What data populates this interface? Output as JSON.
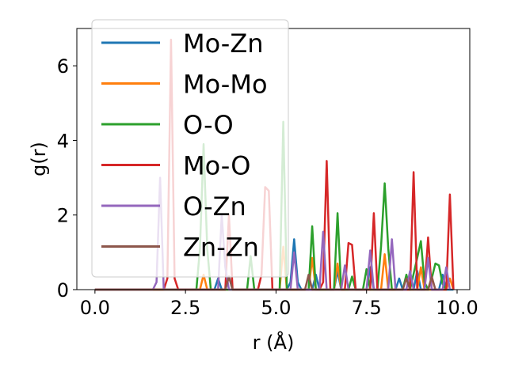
{
  "chart_data": {
    "type": "line",
    "xlabel": "r (Å)",
    "ylabel": "g(r)",
    "xlim": [
      -0.5,
      10.35
    ],
    "ylim": [
      0,
      7.0
    ],
    "xticks": [
      0.0,
      2.5,
      5.0,
      7.5,
      10.0
    ],
    "xtick_labels": [
      "0.0",
      "2.5",
      "5.0",
      "7.5",
      "10.0"
    ],
    "yticks": [
      0,
      2,
      4,
      6
    ],
    "ytick_labels": [
      "0",
      "2",
      "4",
      "6"
    ],
    "grid": false,
    "legend_position": "upper-left",
    "series": [
      {
        "name": "Mo-Zn",
        "color": "#1f77b4",
        "x": [
          0.0,
          1.7,
          1.8,
          1.9,
          3.3,
          3.4,
          3.5,
          3.6,
          3.7,
          3.8,
          5.3,
          5.4,
          5.5,
          5.6,
          5.7,
          6.0,
          6.1,
          6.2,
          6.6,
          6.7,
          6.8,
          7.5,
          7.6,
          7.7,
          8.3,
          8.4,
          8.5,
          8.8,
          8.9,
          9.0,
          9.5,
          9.6,
          9.7,
          9.9
        ],
        "y": [
          0,
          0,
          0,
          0,
          0,
          0.3,
          0,
          0,
          0.35,
          0,
          0,
          0.2,
          1.35,
          0.2,
          0,
          0,
          0.4,
          0,
          0,
          0.5,
          0,
          0,
          0.6,
          0,
          0,
          0.3,
          0,
          0,
          0.5,
          0,
          0,
          0.4,
          0,
          0
        ]
      },
      {
        "name": "Mo-Mo",
        "color": "#ff7f0e",
        "x": [
          0.0,
          2.9,
          3.0,
          3.1,
          5.1,
          5.2,
          5.3,
          5.9,
          6.0,
          6.1,
          6.6,
          6.7,
          6.8,
          7.9,
          8.0,
          8.1,
          8.9,
          9.0,
          9.1,
          9.7,
          9.8,
          9.9
        ],
        "y": [
          0,
          0,
          0.4,
          0,
          0,
          1.15,
          0,
          0,
          0.85,
          0,
          0,
          0.7,
          0,
          0,
          0.95,
          0,
          0,
          0.6,
          0,
          0,
          0.3,
          0
        ]
      },
      {
        "name": "O-O",
        "color": "#2ca02c",
        "x": [
          0.0,
          2.8,
          2.9,
          3.0,
          3.1,
          3.2,
          4.2,
          4.3,
          4.4,
          5.1,
          5.2,
          5.3,
          5.9,
          6.0,
          6.1,
          6.6,
          6.7,
          6.8,
          7.0,
          7.1,
          7.2,
          7.4,
          7.5,
          7.6,
          7.8,
          7.9,
          8.0,
          8.1,
          8.2,
          8.5,
          8.6,
          8.7,
          8.9,
          9.0,
          9.1,
          9.2,
          9.3,
          9.4,
          9.5,
          9.6,
          9.7
        ],
        "y": [
          0,
          0,
          1.1,
          3.9,
          1.1,
          0,
          0,
          0.9,
          0,
          0,
          4.5,
          0,
          0,
          1.7,
          0,
          0,
          2.05,
          0,
          0,
          0.35,
          0,
          0,
          0.55,
          0,
          0,
          1.15,
          2.85,
          1.1,
          0,
          0,
          0.4,
          0,
          0.85,
          1.3,
          0.2,
          0,
          0.3,
          0.7,
          0.65,
          0.15,
          0
        ]
      },
      {
        "name": "Mo-O",
        "color": "#d62728",
        "x": [
          0.0,
          1.9,
          2.0,
          2.1,
          2.2,
          2.3,
          3.6,
          3.7,
          3.8,
          4.5,
          4.6,
          4.7,
          4.8,
          4.9,
          6.2,
          6.3,
          6.4,
          6.5,
          6.9,
          7.0,
          7.1,
          7.2,
          7.6,
          7.7,
          7.8,
          8.7,
          8.8,
          8.9,
          9.1,
          9.2,
          9.3,
          9.7,
          9.8,
          9.9
        ],
        "y": [
          0,
          0,
          0.3,
          6.7,
          0.3,
          0,
          0,
          2.0,
          0,
          0,
          0.4,
          2.75,
          2.65,
          0,
          0,
          0.2,
          3.45,
          0,
          0,
          1.25,
          1.2,
          0,
          0,
          2.05,
          0,
          0,
          3.15,
          0,
          0,
          1.4,
          0,
          0,
          2.55,
          0
        ]
      },
      {
        "name": "O-Zn",
        "color": "#9467bd",
        "x": [
          0.0,
          1.6,
          1.7,
          1.8,
          1.9,
          3.4,
          3.5,
          3.6,
          3.7,
          5.4,
          5.5,
          5.6,
          6.2,
          6.3,
          6.4,
          6.8,
          6.9,
          7.0,
          7.5,
          7.6,
          7.7,
          8.1,
          8.2,
          8.3,
          8.6,
          8.7,
          8.8,
          9.1,
          9.2,
          9.3,
          9.6,
          9.7,
          9.8
        ],
        "y": [
          0,
          0,
          0.2,
          3.0,
          0,
          0,
          2.0,
          0.6,
          0,
          0,
          1.0,
          0,
          0,
          1.55,
          0,
          0,
          0.65,
          0,
          0,
          1.05,
          0,
          0,
          1.35,
          0,
          0,
          0.5,
          0,
          0,
          0.85,
          0,
          0,
          0.6,
          0
        ]
      },
      {
        "name": "Zn-Zn",
        "color": "#8c564b",
        "x": [
          0.0,
          3.6,
          3.7,
          3.8,
          5.8,
          5.9,
          6.0,
          8.5,
          8.6,
          8.7,
          9.2,
          9.3,
          9.4
        ],
        "y": [
          0,
          0,
          0.35,
          0,
          0,
          0.4,
          0,
          0,
          0.3,
          0,
          0,
          0.35,
          0
        ]
      }
    ]
  }
}
